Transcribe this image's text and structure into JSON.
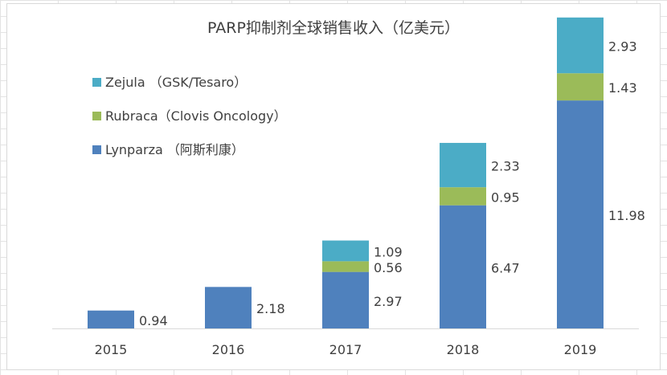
{
  "chart_data": {
    "type": "bar",
    "stacked": true,
    "title": "PARP抑制剂全球销售收入（亿美元）",
    "categories": [
      "2015",
      "2016",
      "2017",
      "2018",
      "2019"
    ],
    "series": [
      {
        "name": "Lynparza （阿斯利康）",
        "color": "#4F81BD",
        "values": [
          0.94,
          2.18,
          2.97,
          6.47,
          11.98
        ]
      },
      {
        "name": "Rubraca（Clovis Oncology）",
        "color": "#9BBB59",
        "values": [
          null,
          null,
          0.56,
          0.95,
          1.43
        ]
      },
      {
        "name": "Zejula （GSK/Tesaro）",
        "color": "#4BACC6",
        "values": [
          null,
          null,
          1.09,
          2.33,
          2.93
        ]
      }
    ],
    "legend_position": "top-left",
    "legend_order": [
      2,
      1,
      0
    ],
    "ylim": [
      0,
      16.5
    ],
    "gridlines": false,
    "data_labels": "right-of-bar"
  }
}
